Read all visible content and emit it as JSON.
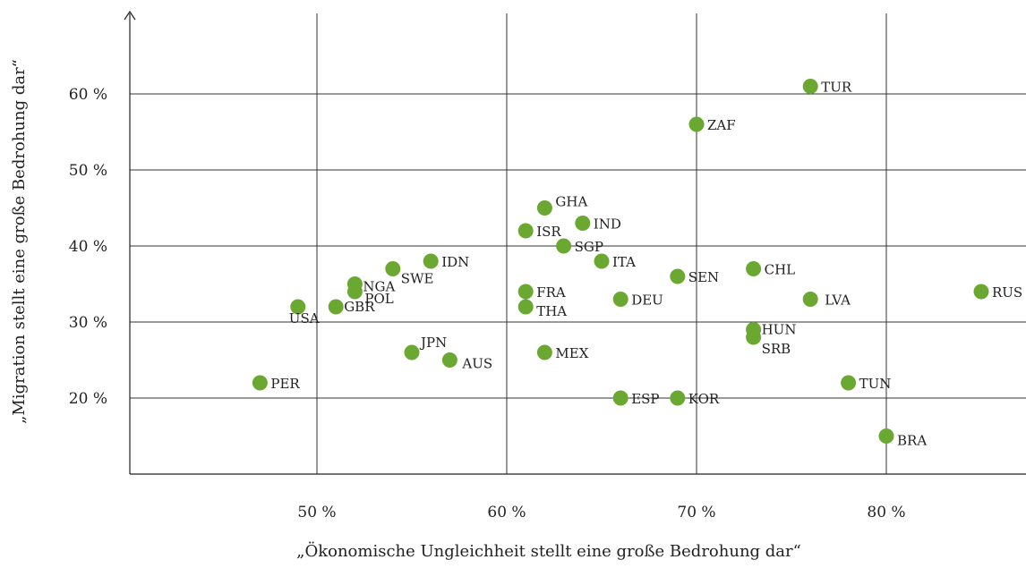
{
  "chart_data": {
    "type": "scatter",
    "title": "",
    "xlabel": "„Ökonomische Ungleichheit stellt eine große Bedrohung dar“",
    "ylabel": "„Migration stellt eine große Bedrohung dar“",
    "xlim": [
      40,
      87
    ],
    "ylim": [
      10,
      70
    ],
    "x_ticks": [
      50,
      60,
      70,
      80
    ],
    "x_tick_labels": [
      "50 %",
      "60 %",
      "70 %",
      "80 %"
    ],
    "y_ticks": [
      20,
      30,
      40,
      50,
      60
    ],
    "y_tick_labels": [
      "20 %",
      "30 %",
      "40 %",
      "50 %",
      "60 %"
    ],
    "grid": true,
    "marker_color": "#6aa832",
    "points": [
      {
        "label": "TUR",
        "x": 76,
        "y": 61
      },
      {
        "label": "ZAF",
        "x": 70,
        "y": 56
      },
      {
        "label": "GHA",
        "x": 62,
        "y": 45
      },
      {
        "label": "IND",
        "x": 64,
        "y": 43
      },
      {
        "label": "ISR",
        "x": 61,
        "y": 42
      },
      {
        "label": "SGP",
        "x": 63,
        "y": 40
      },
      {
        "label": "IDN",
        "x": 56,
        "y": 38
      },
      {
        "label": "ITA",
        "x": 65,
        "y": 38
      },
      {
        "label": "SWE",
        "x": 54,
        "y": 37
      },
      {
        "label": "CHL",
        "x": 73,
        "y": 37
      },
      {
        "label": "SEN",
        "x": 69,
        "y": 36
      },
      {
        "label": "NGA",
        "x": 52,
        "y": 35
      },
      {
        "label": "POL",
        "x": 52,
        "y": 34
      },
      {
        "label": "FRA",
        "x": 61,
        "y": 34
      },
      {
        "label": "RUS",
        "x": 85,
        "y": 34
      },
      {
        "label": "DEU",
        "x": 66,
        "y": 33
      },
      {
        "label": "LVA",
        "x": 76,
        "y": 33
      },
      {
        "label": "USA",
        "x": 49,
        "y": 32
      },
      {
        "label": "GBR",
        "x": 51,
        "y": 32
      },
      {
        "label": "THA",
        "x": 61,
        "y": 32
      },
      {
        "label": "HUN",
        "x": 73,
        "y": 29
      },
      {
        "label": "SRB",
        "x": 73,
        "y": 28
      },
      {
        "label": "JPN",
        "x": 55,
        "y": 26
      },
      {
        "label": "MEX",
        "x": 62,
        "y": 26
      },
      {
        "label": "AUS",
        "x": 57,
        "y": 25
      },
      {
        "label": "PER",
        "x": 47,
        "y": 22
      },
      {
        "label": "TUN",
        "x": 78,
        "y": 22
      },
      {
        "label": "ESP",
        "x": 66,
        "y": 20
      },
      {
        "label": "KOR",
        "x": 69,
        "y": 20
      },
      {
        "label": "BRA",
        "x": 80,
        "y": 15
      }
    ]
  }
}
